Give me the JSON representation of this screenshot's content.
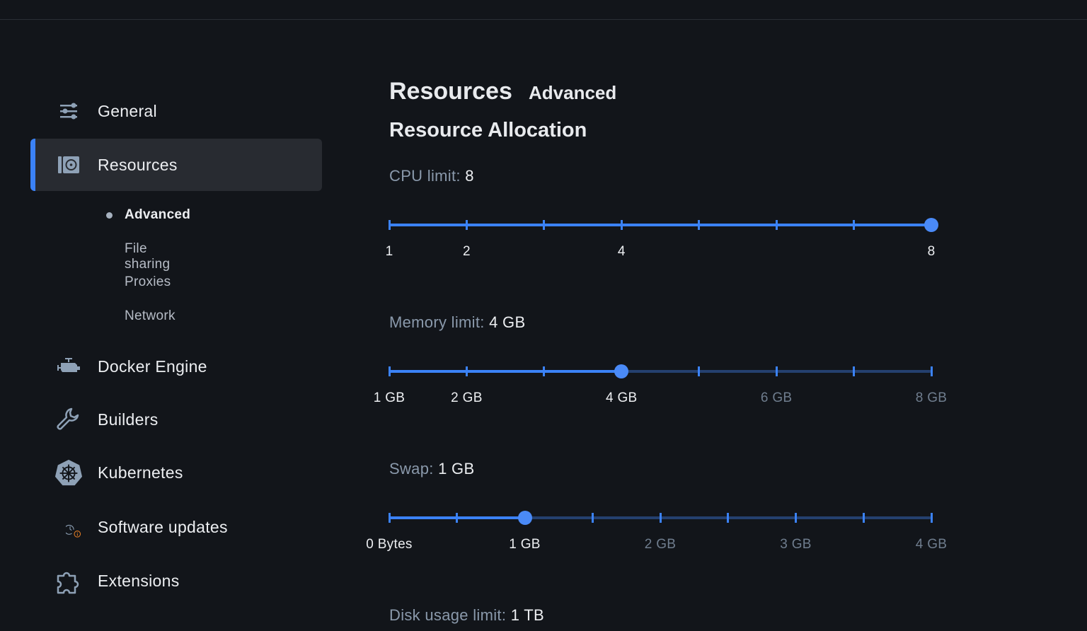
{
  "sidebar": {
    "items": [
      {
        "label": "General",
        "icon": "sliders-icon"
      },
      {
        "label": "Resources",
        "icon": "resources-icon",
        "active": true
      },
      {
        "label": "Docker Engine",
        "icon": "engine-icon"
      },
      {
        "label": "Builders",
        "icon": "wrench-icon"
      },
      {
        "label": "Kubernetes",
        "icon": "kubernetes-icon"
      },
      {
        "label": "Software updates",
        "icon": "clock-update-icon"
      },
      {
        "label": "Extensions",
        "icon": "puzzle-icon"
      }
    ],
    "subitems": [
      {
        "label": "Advanced",
        "active": true
      },
      {
        "label": "File sharing"
      },
      {
        "label": "Proxies"
      },
      {
        "label": "Network"
      }
    ]
  },
  "main": {
    "title": "Resources",
    "subtitle": "Advanced",
    "section": "Resource Allocation",
    "cpu": {
      "label": "CPU limit:",
      "value_text": "8",
      "min": 1,
      "max": 8,
      "step": 1,
      "value": 8,
      "ticks": [
        {
          "v": 1,
          "t": "1"
        },
        {
          "v": 2,
          "t": "2"
        },
        {
          "v": 4,
          "t": "4"
        },
        {
          "v": 8,
          "t": "8"
        }
      ]
    },
    "memory": {
      "label": "Memory limit:",
      "value_text": "4 GB",
      "min": 1,
      "max": 8,
      "step": 1,
      "value": 4,
      "ticks": [
        {
          "v": 1,
          "t": "1 GB"
        },
        {
          "v": 2,
          "t": "2 GB"
        },
        {
          "v": 4,
          "t": "4 GB"
        },
        {
          "v": 6,
          "t": "6 GB"
        },
        {
          "v": 8,
          "t": "8 GB"
        }
      ]
    },
    "swap": {
      "label": "Swap:",
      "value_text": "1 GB",
      "min": 0,
      "max": 4,
      "step": 0.5,
      "value": 1,
      "ticks": [
        {
          "v": 0,
          "t": "0 Bytes"
        },
        {
          "v": 1,
          "t": "1 GB"
        },
        {
          "v": 2,
          "t": "2 GB"
        },
        {
          "v": 3,
          "t": "3 GB"
        },
        {
          "v": 4,
          "t": "4 GB"
        }
      ]
    },
    "disk": {
      "label": "Disk usage limit:",
      "value_text": "1 TB"
    }
  },
  "colors": {
    "accent": "#3b82f6",
    "track_inactive": "#24406f",
    "label_inactive": "#6f7d8e",
    "warning": "#e07b24"
  }
}
